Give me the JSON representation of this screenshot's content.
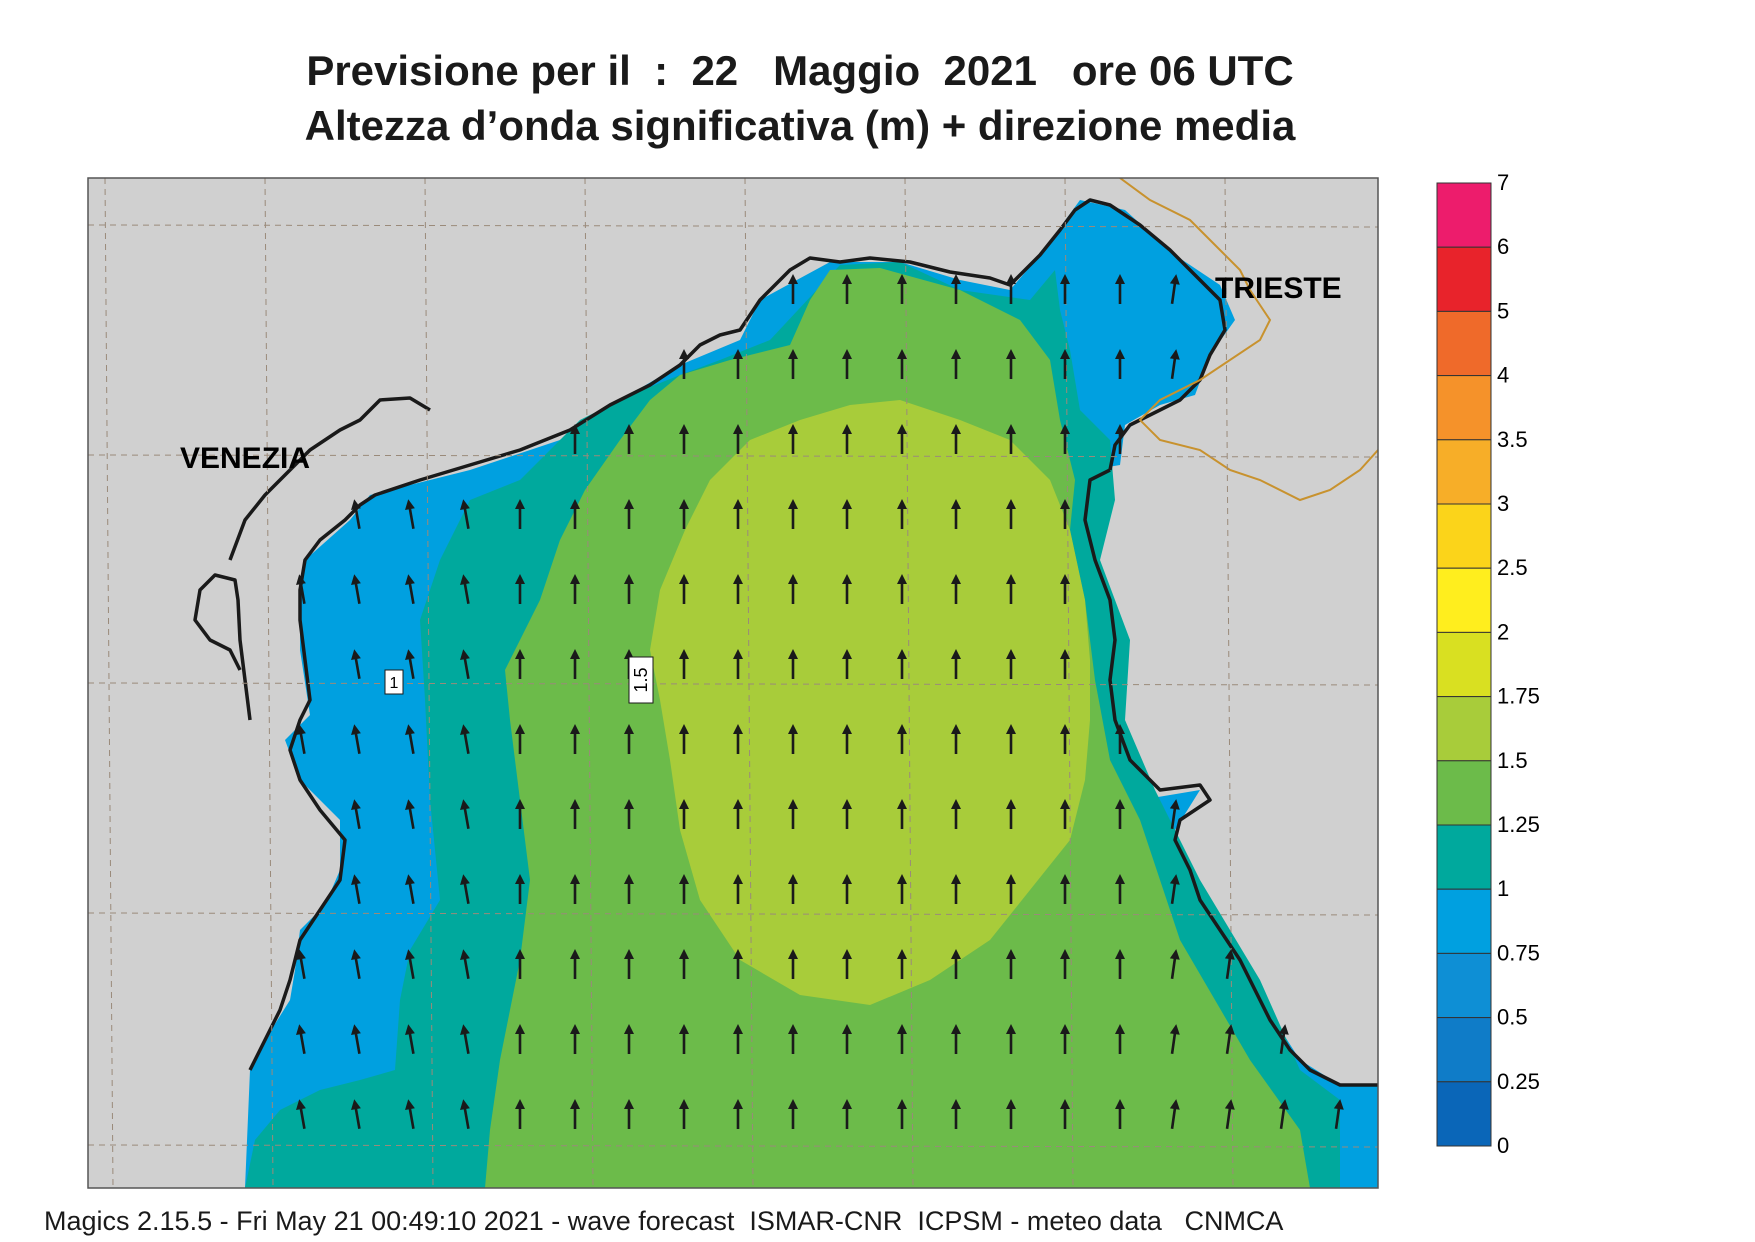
{
  "header": {
    "title_line1": "Previsione per il  :  22   Maggio  2021   ore 06 UTC",
    "title_line2": "Altezza d’onda significativa (m) + direzione media"
  },
  "map": {
    "labels": {
      "venezia": "VENEZIA",
      "trieste": "TRIESTE"
    },
    "contour_labels": [
      "1",
      "1.5"
    ],
    "colors": {
      "land": "#d0d0d0",
      "coast": "#1a1a1a",
      "border": "#c8922e",
      "grid": "#9a8a7a",
      "arrow": "#1a1a1a"
    },
    "wave_direction": "north"
  },
  "colorbar": {
    "ticks": [
      "7",
      "6",
      "5",
      "4",
      "3.5",
      "3",
      "2.5",
      "2",
      "1.75",
      "1.5",
      "1.25",
      "1",
      "0.75",
      "0.5",
      "0.25",
      "0"
    ],
    "colors": [
      "#ed1c6c",
      "#e8232b",
      "#ef6a2a",
      "#f5922a",
      "#f7ae28",
      "#fbd41a",
      "#ffee1e",
      "#d9e021",
      "#a8cc3a",
      "#6cbb4a",
      "#00a99d",
      "#00a0e0",
      "#0e8fd5",
      "#0f7cc8",
      "#0a66b8"
    ]
  },
  "footer": {
    "text": "Magics 2.15.5 - Fri May 21 00:49:10 2021 - wave forecast  ISMAR-CNR  ICPSM - meteo data   CNMCA"
  }
}
